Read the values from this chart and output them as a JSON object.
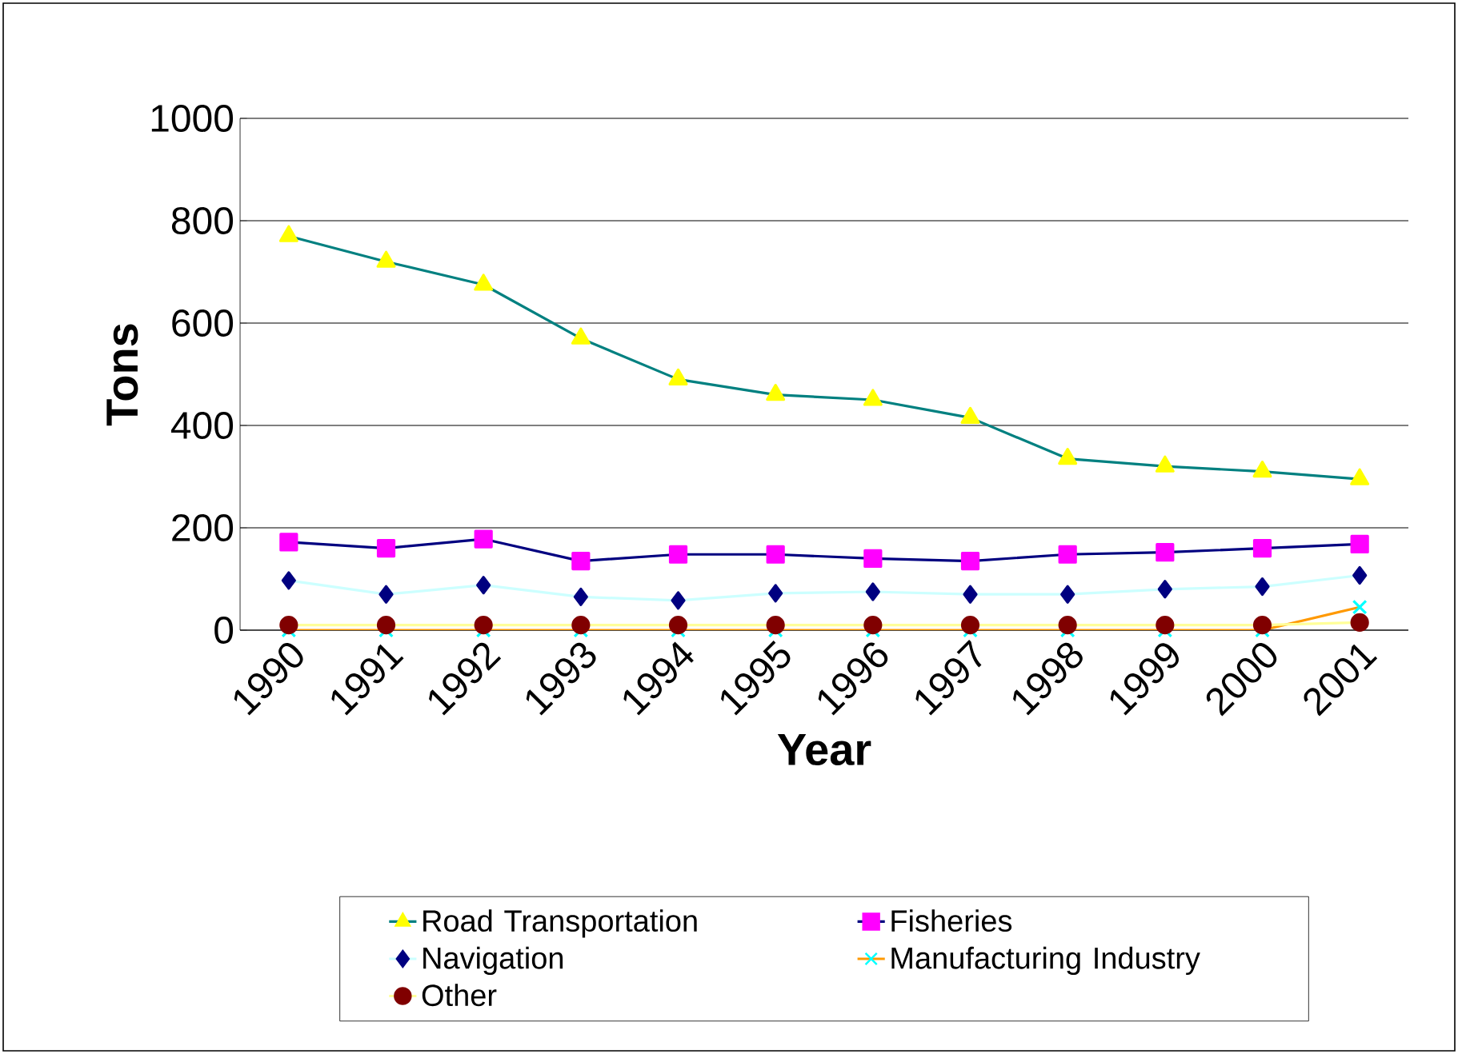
{
  "chart_data": {
    "type": "line",
    "xlabel": "Year",
    "ylabel": "Tons",
    "categories": [
      "1990",
      "1991",
      "1992",
      "1993",
      "1994",
      "1995",
      "1996",
      "1997",
      "1998",
      "1999",
      "2000",
      "2001"
    ],
    "series": [
      {
        "name": "Road Transportation",
        "color": "#008080",
        "marker": "triangle",
        "colors": [
          "#ffff00",
          "#ffff00",
          "#ffff00",
          "#ffff00",
          "#ffff00",
          "#ffff00",
          "#ffff00",
          "#ffff00",
          "#ffff00",
          "#ffff00",
          "#ffff00",
          "#ffff00"
        ],
        "values": [
          770,
          720,
          675,
          570,
          490,
          460,
          450,
          415,
          335,
          320,
          310,
          295
        ]
      },
      {
        "name": "Fisheries",
        "color": "#000080",
        "marker": "square",
        "colors": [
          "#ff00ff",
          "#ff00ff",
          "#ff00ff",
          "#ff00ff",
          "#ff00ff",
          "#ff00ff",
          "#ff00ff",
          "#ff00ff",
          "#ff00ff",
          "#ff00ff",
          "#ff00ff",
          "#ff00ff"
        ],
        "values": [
          172,
          160,
          178,
          135,
          148,
          148,
          140,
          135,
          148,
          152,
          160,
          168
        ]
      },
      {
        "name": "Navigation",
        "color": "#ccffff",
        "marker": "diamond",
        "colors": [
          "#000080",
          "#000080",
          "#000080",
          "#000080",
          "#000080",
          "#000080",
          "#000080",
          "#000080",
          "#000080",
          "#000080",
          "#000080",
          "#000080"
        ],
        "values": [
          97,
          70,
          88,
          65,
          58,
          72,
          75,
          70,
          70,
          80,
          85,
          107
        ]
      },
      {
        "name": "Manufacturing Industry",
        "color": "#ff9900",
        "marker": "cross",
        "colors": [
          "#00ffff",
          "#00ffff",
          "#00ffff",
          "#00ffff",
          "#00ffff",
          "#00ffff",
          "#00ffff",
          "#00ffff",
          "#00ffff",
          "#00ffff",
          "#00ffff",
          "#00ffff"
        ],
        "values": [
          0,
          0,
          0,
          0,
          0,
          0,
          0,
          0,
          0,
          0,
          0,
          45
        ]
      },
      {
        "name": "Other",
        "color": "#ffff99",
        "marker": "circle",
        "colors": [
          "#800000",
          "#800000",
          "#800000",
          "#800000",
          "#800000",
          "#800000",
          "#800000",
          "#800000",
          "#800000",
          "#800000",
          "#800000",
          "#800000"
        ],
        "values": [
          10,
          10,
          10,
          10,
          10,
          10,
          10,
          10,
          10,
          10,
          10,
          15
        ]
      }
    ],
    "ylim": [
      0,
      1000
    ],
    "yticks": [
      0,
      200,
      400,
      600,
      800,
      1000
    ],
    "grid": "y",
    "legend": "bottom"
  }
}
